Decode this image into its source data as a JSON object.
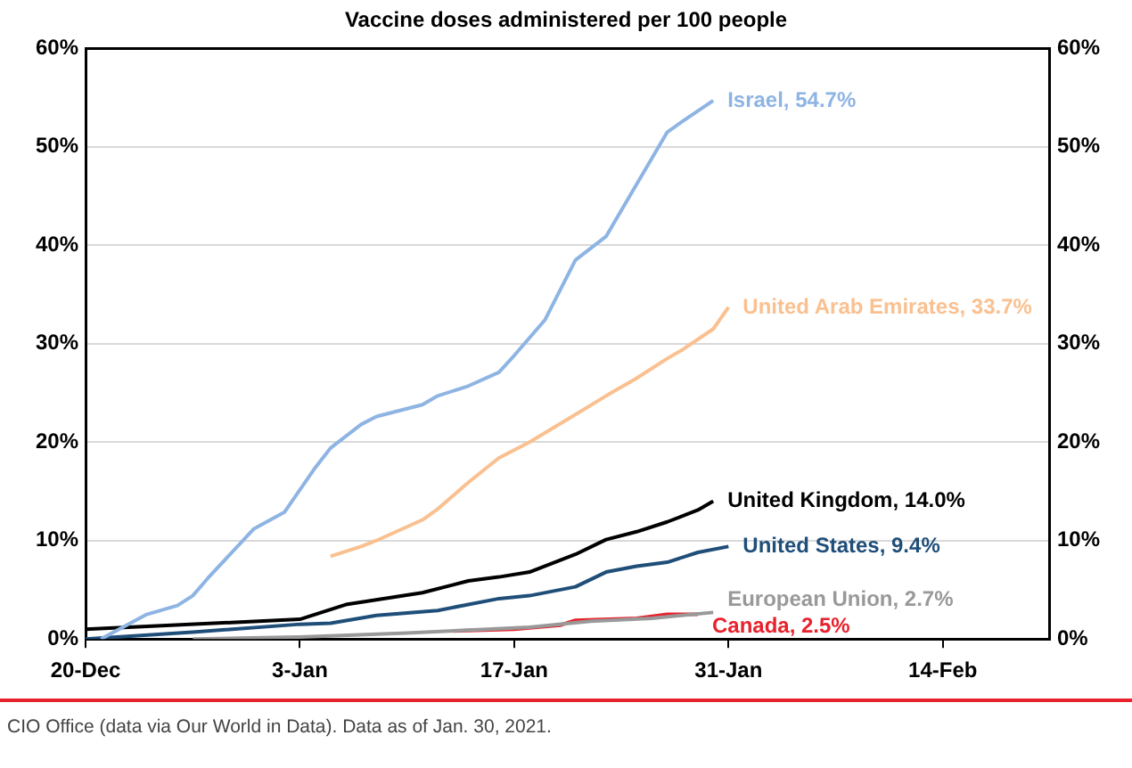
{
  "chart_data": {
    "type": "line",
    "title": "Vaccine doses administered per 100 people",
    "xlim": [
      "2020-12-20",
      "2021-02-21"
    ],
    "xticks": [
      {
        "value": "2020-12-20",
        "label": "20-Dec"
      },
      {
        "value": "2021-01-03",
        "label": "3-Jan"
      },
      {
        "value": "2021-01-17",
        "label": "17-Jan"
      },
      {
        "value": "2021-01-31",
        "label": "31-Jan"
      },
      {
        "value": "2021-02-14",
        "label": "14-Feb"
      }
    ],
    "ylim": [
      0,
      60
    ],
    "yticks": [
      {
        "value": 0,
        "label": "0%"
      },
      {
        "value": 10,
        "label": "10%"
      },
      {
        "value": 20,
        "label": "20%"
      },
      {
        "value": 30,
        "label": "30%"
      },
      {
        "value": 40,
        "label": "40%"
      },
      {
        "value": 50,
        "label": "50%"
      },
      {
        "value": 60,
        "label": "60%"
      }
    ],
    "y2lim": [
      0,
      60
    ],
    "y2ticks": [
      {
        "value": 0,
        "label": "0%"
      },
      {
        "value": 10,
        "label": "10%"
      },
      {
        "value": 20,
        "label": "20%"
      },
      {
        "value": 30,
        "label": "30%"
      },
      {
        "value": 40,
        "label": "40%"
      },
      {
        "value": 50,
        "label": "50%"
      },
      {
        "value": 60,
        "label": "60%"
      }
    ],
    "grid": "y",
    "marker": "none",
    "line_style": "solid",
    "series": [
      {
        "name": "Israel,",
        "color": "#8eb4e3",
        "x": [
          "2020-12-21",
          "2020-12-24",
          "2020-12-26",
          "2020-12-27",
          "2020-12-28",
          "2020-12-31",
          "2021-01-02",
          "2021-01-04",
          "2021-01-05",
          "2021-01-07",
          "2021-01-08",
          "2021-01-11",
          "2021-01-12",
          "2021-01-14",
          "2021-01-16",
          "2021-01-17",
          "2021-01-19",
          "2021-01-21",
          "2021-01-23",
          "2021-01-25",
          "2021-01-27",
          "2021-01-28",
          "2021-01-30"
        ],
        "values": [
          0,
          2.5,
          3.4,
          4.4,
          6.2,
          11.2,
          12.9,
          17.4,
          19.4,
          21.8,
          22.6,
          23.8,
          24.7,
          25.7,
          27.1,
          28.8,
          32.4,
          38.5,
          40.9,
          46.2,
          51.5,
          52.6,
          54.7
        ],
        "value_labels": [
          null,
          null,
          null,
          null,
          null,
          null,
          null,
          null,
          null,
          null,
          null,
          null,
          null,
          null,
          null,
          null,
          null,
          null,
          null,
          null,
          null,
          null,
          "54.7%"
        ]
      },
      {
        "name": "United Arab Emirates,",
        "color": "#fac090",
        "x": [
          "2021-01-05",
          "2021-01-07",
          "2021-01-08",
          "2021-01-11",
          "2021-01-12",
          "2021-01-14",
          "2021-01-16",
          "2021-01-18",
          "2021-01-21",
          "2021-01-23",
          "2021-01-25",
          "2021-01-27",
          "2021-01-28",
          "2021-01-30",
          "2021-01-31"
        ],
        "values": [
          8.4,
          9.4,
          10.0,
          12.1,
          13.2,
          15.9,
          18.4,
          20.0,
          22.8,
          24.7,
          26.5,
          28.5,
          29.4,
          31.5,
          33.7
        ],
        "value_labels": [
          null,
          null,
          null,
          null,
          null,
          null,
          null,
          null,
          null,
          null,
          null,
          null,
          null,
          null,
          "33.7%"
        ]
      },
      {
        "name": "United Kingdom,",
        "color": "#000000",
        "x": [
          "2020-12-20",
          "2021-01-03",
          "2021-01-06",
          "2021-01-11",
          "2021-01-14",
          "2021-01-16",
          "2021-01-18",
          "2021-01-21",
          "2021-01-23",
          "2021-01-25",
          "2021-01-27",
          "2021-01-29",
          "2021-01-30"
        ],
        "values": [
          1.0,
          2.0,
          3.5,
          4.7,
          5.9,
          6.3,
          6.8,
          8.6,
          10.1,
          10.9,
          11.9,
          13.1,
          14.0
        ],
        "value_labels": [
          null,
          null,
          null,
          null,
          null,
          null,
          null,
          null,
          null,
          null,
          null,
          null,
          "14.0%"
        ]
      },
      {
        "name": "United States,",
        "color": "#1f4e79",
        "x": [
          "2020-12-20",
          "2020-12-27",
          "2021-01-03",
          "2021-01-05",
          "2021-01-08",
          "2021-01-12",
          "2021-01-16",
          "2021-01-18",
          "2021-01-21",
          "2021-01-23",
          "2021-01-25",
          "2021-01-27",
          "2021-01-29",
          "2021-01-31"
        ],
        "values": [
          0,
          0.7,
          1.5,
          1.6,
          2.4,
          2.9,
          4.1,
          4.4,
          5.3,
          6.8,
          7.4,
          7.8,
          8.8,
          9.4
        ],
        "value_labels": [
          null,
          null,
          null,
          null,
          null,
          null,
          null,
          null,
          null,
          null,
          null,
          null,
          null,
          "9.4%"
        ]
      },
      {
        "name": "European Union,",
        "color": "#999999",
        "x": [
          "2020-12-27",
          "2021-01-03",
          "2021-01-10",
          "2021-01-14",
          "2021-01-18",
          "2021-01-22",
          "2021-01-26",
          "2021-01-30"
        ],
        "values": [
          0,
          0.2,
          0.6,
          0.9,
          1.2,
          1.8,
          2.1,
          2.7
        ],
        "value_labels": [
          null,
          null,
          null,
          null,
          null,
          null,
          null,
          "2.7%"
        ]
      },
      {
        "name": "Canada,",
        "color": "#e8222c",
        "x": [
          "2021-01-13",
          "2021-01-17",
          "2021-01-20",
          "2021-01-21",
          "2021-01-25",
          "2021-01-27",
          "2021-01-29"
        ],
        "values": [
          0.8,
          1.0,
          1.4,
          1.9,
          2.1,
          2.5,
          2.5
        ],
        "value_labels": [
          null,
          null,
          null,
          null,
          null,
          null,
          "2.5%"
        ]
      }
    ],
    "annotations": [
      "CIO Office (data via Our World in Data). Data as of Jan. 30, 2021."
    ]
  }
}
